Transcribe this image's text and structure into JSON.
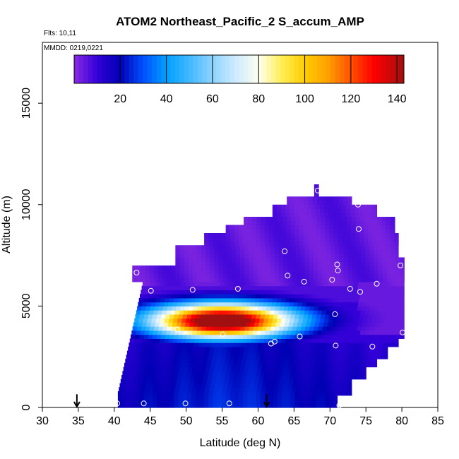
{
  "header": {
    "title": "ATOM2 Northeast_Pacific_2 S_accum_AMP",
    "flights": "Flts: 10,11",
    "dates": "MMDD: 0219,0221"
  },
  "chart_data": {
    "type": "heatmap",
    "title": "ATOM2 Northeast_Pacific_2 S_accum_AMP",
    "xlabel": "Latitude (deg N)",
    "ylabel": "Altitude (m)",
    "xlim": [
      30,
      85
    ],
    "ylim": [
      0,
      18000
    ],
    "x_ticks": [
      30,
      35,
      40,
      45,
      50,
      55,
      60,
      65,
      70,
      75,
      80,
      85
    ],
    "y_ticks": [
      0,
      5000,
      10000,
      15000
    ],
    "colorbar": {
      "range": [
        0,
        143
      ],
      "ticks": [
        20,
        40,
        60,
        80,
        100,
        120,
        140
      ],
      "stops": [
        {
          "v": 0,
          "color": "#8a2be2"
        },
        {
          "v": 10,
          "color": "#3300d8"
        },
        {
          "v": 20,
          "color": "#0000b4"
        },
        {
          "v": 30,
          "color": "#0050ff"
        },
        {
          "v": 40,
          "color": "#00a0ff"
        },
        {
          "v": 50,
          "color": "#40b8ff"
        },
        {
          "v": 60,
          "color": "#8ed4ff"
        },
        {
          "v": 70,
          "color": "#cdebff"
        },
        {
          "v": 80,
          "color": "#fffff0"
        },
        {
          "v": 90,
          "color": "#ffee55"
        },
        {
          "v": 100,
          "color": "#ffcc00"
        },
        {
          "v": 110,
          "color": "#ffa000"
        },
        {
          "v": 120,
          "color": "#ff5000"
        },
        {
          "v": 130,
          "color": "#ff0000"
        },
        {
          "v": 143,
          "color": "#a01010"
        }
      ]
    },
    "sample_points": [
      [
        40.4,
        200
      ],
      [
        44.1,
        200
      ],
      [
        49.9,
        200
      ],
      [
        56,
        200
      ],
      [
        71.3,
        100
      ],
      [
        40.6,
        2800
      ],
      [
        48.8,
        3850
      ],
      [
        55.1,
        3600
      ],
      [
        61.8,
        3150
      ],
      [
        62.3,
        3250
      ],
      [
        65.8,
        3500
      ],
      [
        70.8,
        3050
      ],
      [
        75.9,
        3000
      ],
      [
        80.1,
        3700
      ],
      [
        43.1,
        6650
      ],
      [
        45.1,
        5750
      ],
      [
        50.9,
        5800
      ],
      [
        57.2,
        5850
      ],
      [
        64.1,
        6500
      ],
      [
        66.4,
        6200
      ],
      [
        70.3,
        6300
      ],
      [
        70.7,
        4600
      ],
      [
        72.8,
        5850
      ],
      [
        74.2,
        5700
      ],
      [
        76.5,
        6100
      ],
      [
        79.8,
        7000
      ],
      [
        63.7,
        7700
      ],
      [
        71,
        7050
      ],
      [
        71.1,
        6750
      ],
      [
        74,
        8800
      ],
      [
        73.9,
        10000
      ],
      [
        78.7,
        9650
      ],
      [
        68.3,
        10700
      ]
    ],
    "flight_markers_lat": [
      34.8,
      61.2
    ]
  }
}
